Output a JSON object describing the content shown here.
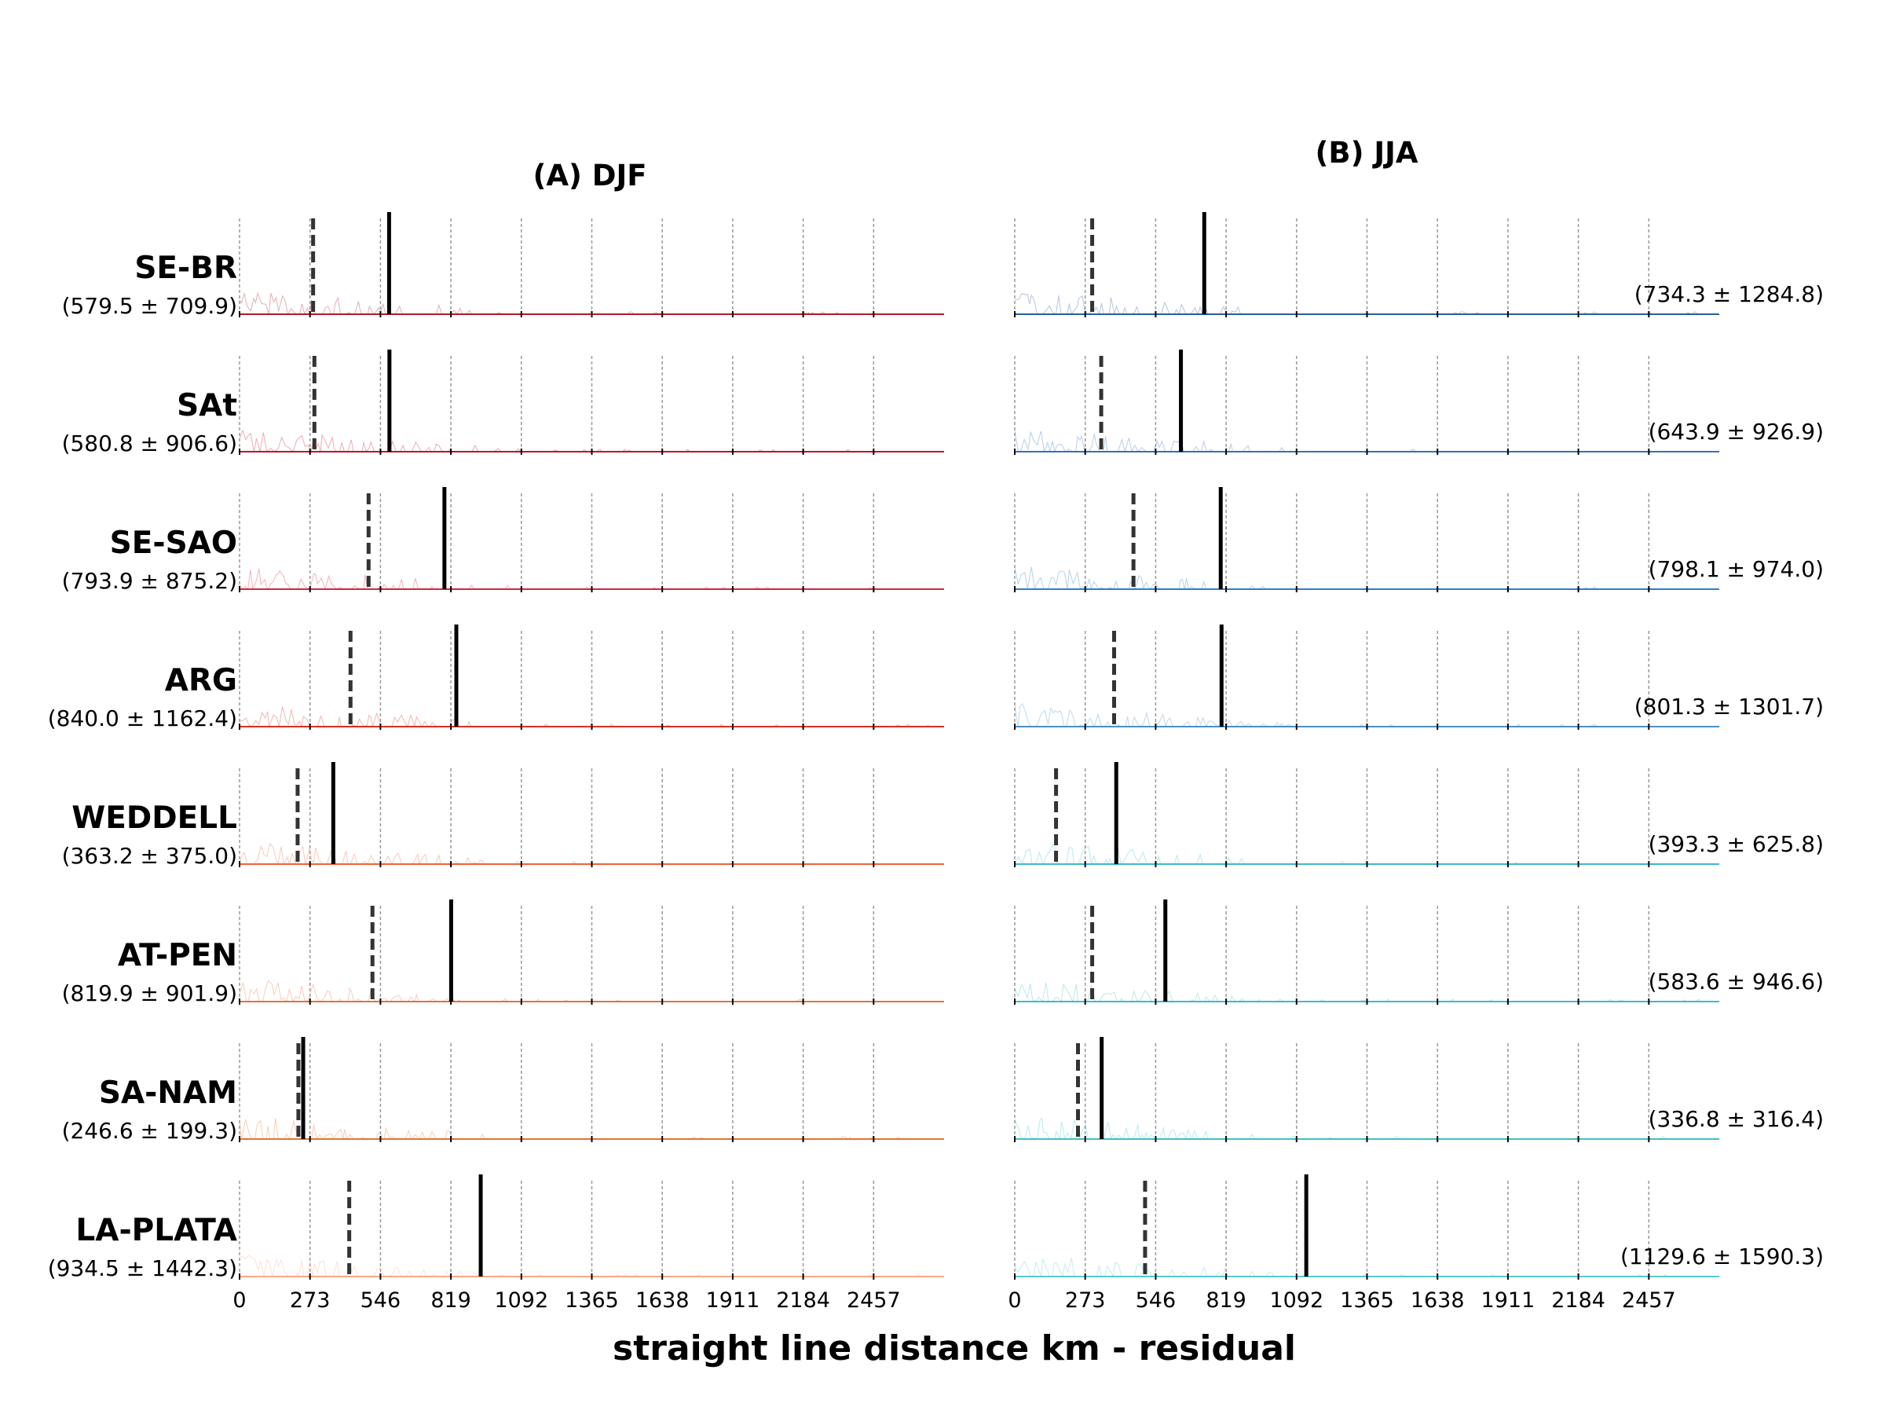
{
  "chart_data": {
    "type": "line",
    "xlabel": "straight line distance km - residual",
    "x_ticks": [
      0,
      273,
      546,
      819,
      1092,
      1365,
      1638,
      1911,
      2184,
      2457
    ],
    "xlim": [
      0,
      2730
    ],
    "grid": true,
    "panels": [
      {
        "title": "(A) DJF",
        "colors": [
          "#b2182b",
          "#c0142a",
          "#d7263d",
          "#d7301f",
          "#f4623a",
          "#e0733f",
          "#e8742c",
          "#f9a98c"
        ],
        "regions": [
          {
            "name": "SE-BR",
            "stat": "(579.5 ± 709.9)",
            "mean": 579.5,
            "median": 285
          },
          {
            "name": "SAt",
            "stat": "(580.8 ± 906.6)",
            "mean": 580.8,
            "median": 290
          },
          {
            "name": "SE-SAO",
            "stat": "(793.9 ± 875.2)",
            "mean": 793.9,
            "median": 500
          },
          {
            "name": "ARG",
            "stat": "(840.0 ± 1162.4)",
            "mean": 840.0,
            "median": 430
          },
          {
            "name": "WEDDELL",
            "stat": "(363.2 ± 375.0)",
            "mean": 363.2,
            "median": 225
          },
          {
            "name": "AT-PEN",
            "stat": "(819.9 ± 901.9)",
            "mean": 819.9,
            "median": 515
          },
          {
            "name": "SA-NAM",
            "stat": "(246.6 ± 199.3)",
            "mean": 246.6,
            "median": 228
          },
          {
            "name": "LA-PLATA",
            "stat": "(934.5 ± 1442.3)",
            "mean": 934.5,
            "median": 425
          }
        ]
      },
      {
        "title": "(B) JJA",
        "colors": [
          "#2c5d9e",
          "#3a6fb8",
          "#2f7fc1",
          "#4a90c8",
          "#3fb6d3",
          "#40b9cc",
          "#3fc0c8",
          "#58c8d6"
        ],
        "regions": [
          {
            "name": "SE-BR",
            "stat": "(734.3 ± 1284.8)",
            "mean": 734.3,
            "median": 300
          },
          {
            "name": "SAt",
            "stat": "(643.9 ± 926.9)",
            "mean": 643.9,
            "median": 335
          },
          {
            "name": "SE-SAO",
            "stat": "(798.1 ± 974.0)",
            "mean": 798.1,
            "median": 460
          },
          {
            "name": "ARG",
            "stat": "(801.3 ± 1301.7)",
            "mean": 801.3,
            "median": 385
          },
          {
            "name": "WEDDELL",
            "stat": "(393.3 ± 625.8)",
            "mean": 393.3,
            "median": 160
          },
          {
            "name": "AT-PEN",
            "stat": "(583.6 ± 946.6)",
            "mean": 583.6,
            "median": 300
          },
          {
            "name": "SA-NAM",
            "stat": "(336.8 ± 316.4)",
            "mean": 336.8,
            "median": 245
          },
          {
            "name": "LA-PLATA",
            "stat": "(1129.6 ± 1590.3)",
            "mean": 1129.6,
            "median": 505
          }
        ]
      }
    ]
  }
}
